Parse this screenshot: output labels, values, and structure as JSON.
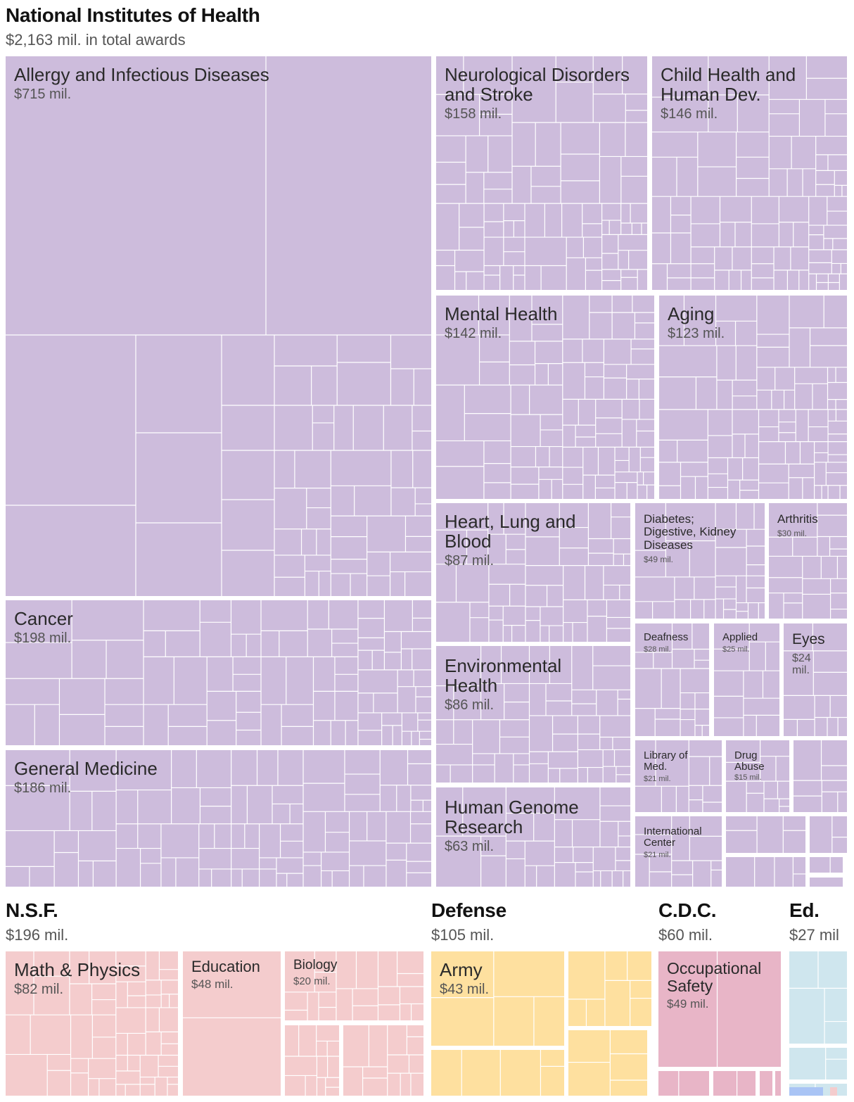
{
  "chart_data": {
    "type": "treemap",
    "unit": "mil.",
    "agencies": [
      {
        "name": "National Institutes of Health",
        "total_label": "$2,163 mil. in total awards",
        "color": "#cdbcdc",
        "groups": [
          {
            "name": "Allergy and Infectious Diseases",
            "amount": "$715 mil.",
            "value": 715
          },
          {
            "name": "Cancer",
            "amount": "$198 mil.",
            "value": 198
          },
          {
            "name": "General Medicine",
            "amount": "$186 mil.",
            "value": 186
          },
          {
            "name": "Neurological Disorders and Stroke",
            "amount": "$158 mil.",
            "value": 158
          },
          {
            "name": "Child Health and Human Dev.",
            "amount": "$146 mil.",
            "value": 146
          },
          {
            "name": "Mental Health",
            "amount": "$142 mil.",
            "value": 142
          },
          {
            "name": "Aging",
            "amount": "$123 mil.",
            "value": 123
          },
          {
            "name": "Heart, Lung and Blood",
            "amount": "$87 mil.",
            "value": 87
          },
          {
            "name": "Environmental Health",
            "amount": "$86 mil.",
            "value": 86
          },
          {
            "name": "Human Genome Research",
            "amount": "$63 mil.",
            "value": 63
          },
          {
            "name": "Diabetes; Digestive, Kidney Diseases",
            "amount": "$49 mil.",
            "value": 49
          },
          {
            "name": "Arthritis",
            "amount": "$30 mil.",
            "value": 30
          },
          {
            "name": "Deafness",
            "amount": "$28 mil.",
            "value": 28
          },
          {
            "name": "Applied",
            "amount": "$25 mil.",
            "value": 25
          },
          {
            "name": "Eyes",
            "amount": "$24 mil.",
            "value": 24
          },
          {
            "name": "Library of Med.",
            "amount": "$21 mil.",
            "value": 21
          },
          {
            "name": "Drug Abuse",
            "amount": "$15 mil.",
            "value": 15
          },
          {
            "name": "International Center",
            "amount": "$21 mil.",
            "value": 21
          }
        ]
      },
      {
        "name": "N.S.F.",
        "total_label": "$196 mil.",
        "color": "#f4cccd",
        "groups": [
          {
            "name": "Math & Physics",
            "amount": "$82 mil.",
            "value": 82
          },
          {
            "name": "Education",
            "amount": "$48 mil.",
            "value": 48
          },
          {
            "name": "Biology",
            "amount": "$20 mil.",
            "value": 20
          }
        ]
      },
      {
        "name": "Defense",
        "total_label": "$105 mil.",
        "color": "#fee09f",
        "groups": [
          {
            "name": "Army",
            "amount": "$43 mil.",
            "value": 43
          }
        ]
      },
      {
        "name": "C.D.C.",
        "total_label": "$60 mil.",
        "color": "#e8b5c7",
        "groups": [
          {
            "name": "Occupational Safety",
            "amount": "$49 mil.",
            "value": 49
          }
        ]
      },
      {
        "name": "Ed.",
        "total_label": "$27 mil",
        "color": "#cfe6ee",
        "groups": []
      }
    ]
  }
}
